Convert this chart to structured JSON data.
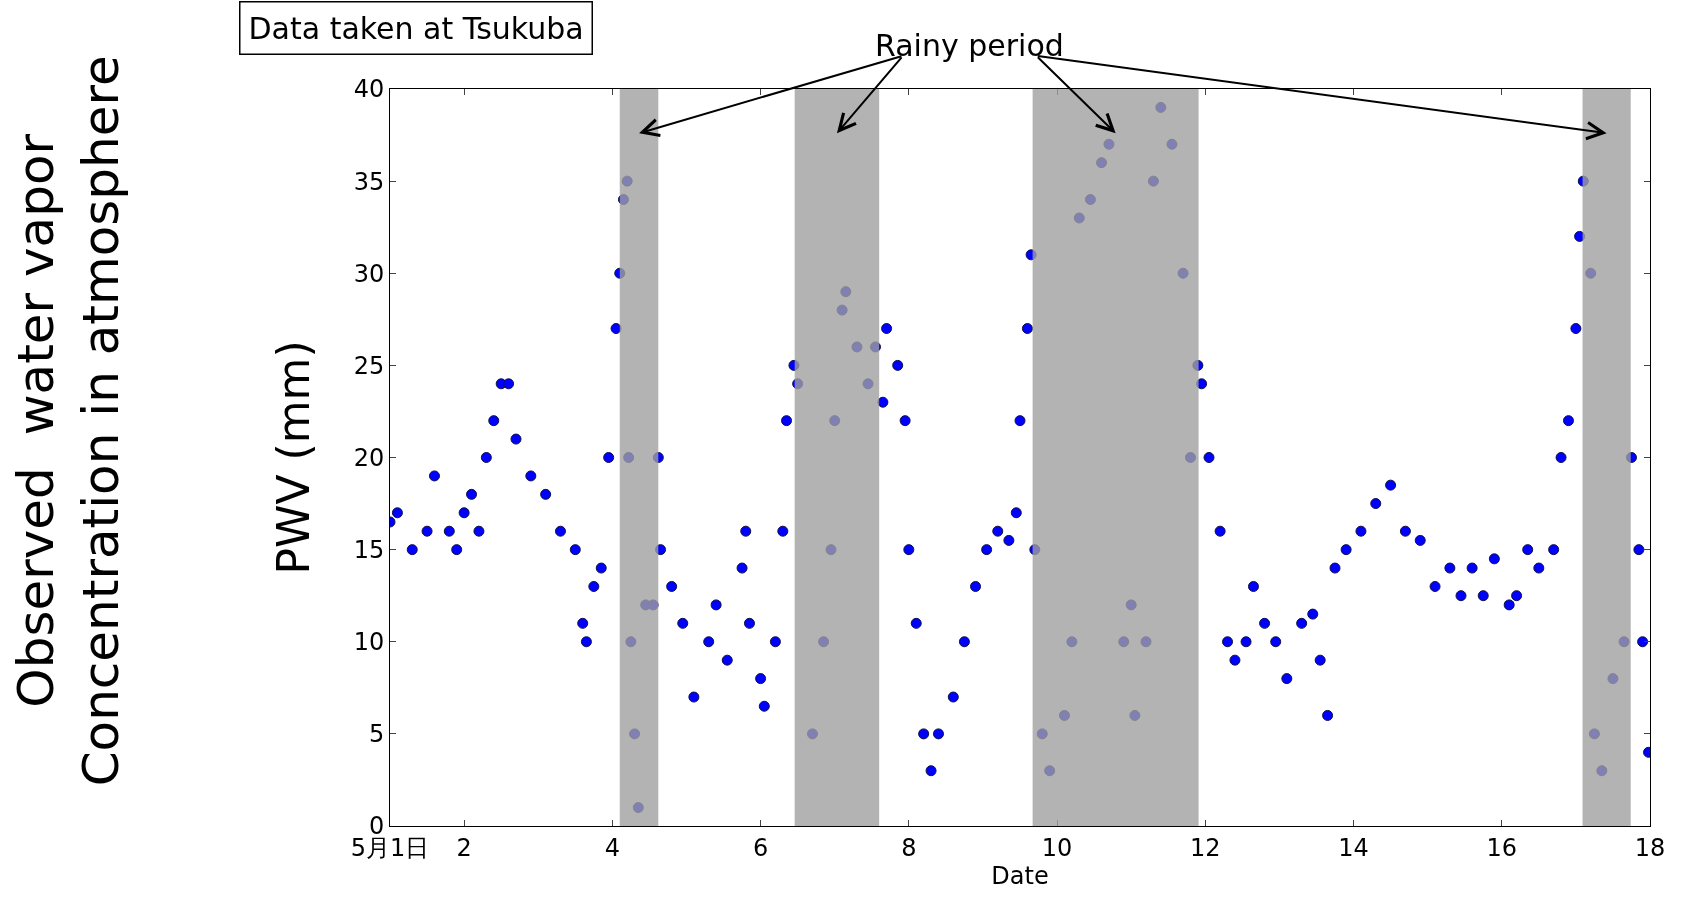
{
  "chart_data": {
    "type": "scatter",
    "title": "Data taken at Tsukuba",
    "xlabel": "Date",
    "ylabel": "PWV (mm)",
    "annotations": [
      "Observed  water vapor\nConcentration in atmosphere",
      "Rainy period"
    ],
    "x": [
      1.0,
      1.1,
      1.3,
      1.5,
      1.6,
      1.8,
      1.9,
      2.0,
      2.1,
      2.2,
      2.3,
      2.4,
      2.5,
      2.6,
      2.7,
      2.9,
      3.1,
      3.3,
      3.5,
      3.6,
      3.65,
      3.75,
      3.85,
      3.95,
      4.05,
      4.1,
      4.15,
      4.2,
      4.22,
      4.25,
      4.3,
      4.35,
      4.45,
      4.55,
      4.62,
      4.65,
      4.8,
      4.95,
      5.1,
      5.3,
      5.4,
      5.55,
      5.75,
      5.8,
      5.85,
      6.0,
      6.05,
      6.2,
      6.3,
      6.35,
      6.45,
      6.5,
      6.7,
      6.85,
      6.95,
      7.0,
      7.1,
      7.15,
      7.3,
      7.45,
      7.55,
      7.65,
      7.7,
      7.85,
      7.95,
      8.0,
      8.1,
      8.2,
      8.3,
      8.4,
      8.6,
      8.75,
      8.9,
      9.05,
      9.2,
      9.35,
      9.45,
      9.5,
      9.6,
      9.65,
      9.7,
      9.8,
      9.9,
      10.1,
      10.2,
      10.3,
      10.45,
      10.6,
      10.7,
      10.9,
      11.0,
      11.05,
      11.2,
      11.3,
      11.4,
      11.55,
      11.7,
      11.8,
      11.9,
      11.95,
      12.05,
      12.2,
      12.3,
      12.4,
      12.55,
      12.65,
      12.8,
      12.95,
      13.1,
      13.3,
      13.45,
      13.55,
      13.65,
      13.75,
      13.9,
      14.1,
      14.3,
      14.5,
      14.7,
      14.9,
      15.1,
      15.3,
      15.45,
      15.6,
      15.75,
      15.9,
      16.1,
      16.2,
      16.35,
      16.5,
      16.7,
      16.8,
      16.9,
      17.0,
      17.05,
      17.1,
      17.2,
      17.25,
      17.35,
      17.5,
      17.65,
      17.75,
      17.85,
      17.9,
      17.98
    ],
    "series": [
      {
        "color": "#0000ff",
        "values": [
          16.5,
          17,
          15,
          16,
          19,
          16,
          15,
          17,
          18,
          16,
          20,
          22,
          24,
          24,
          21,
          19,
          18,
          16,
          15,
          11,
          10,
          13,
          14,
          20,
          27,
          30,
          34,
          35,
          20,
          10,
          5,
          1,
          12,
          12,
          20,
          15,
          13,
          11,
          7,
          10,
          12,
          9,
          14,
          16,
          11,
          8,
          6.5,
          10,
          16,
          22,
          25,
          24,
          5,
          10,
          15,
          22,
          28,
          29,
          26,
          24,
          26,
          23,
          27,
          25,
          22,
          15,
          11,
          5,
          3,
          5,
          7,
          10,
          13,
          15,
          16,
          15.5,
          17,
          22,
          27,
          31,
          15,
          5,
          3,
          6,
          10,
          33,
          34,
          36,
          37,
          10,
          12,
          6,
          10,
          35,
          39,
          37,
          30,
          20,
          25,
          24,
          20,
          16,
          10,
          9,
          10,
          13,
          11,
          10,
          8,
          11,
          11.5,
          9,
          6,
          14,
          15,
          16,
          17.5,
          18.5,
          16,
          15.5,
          13,
          14,
          12.5,
          14,
          12.5,
          14.5,
          12,
          12.5,
          15,
          14,
          15,
          20,
          22,
          27,
          32,
          35,
          30,
          5,
          3,
          8,
          10,
          20,
          15,
          10,
          4
        ]
      }
    ],
    "marker": "circle",
    "bands": [
      {
        "axis": "x",
        "from": 4.1,
        "to": 4.62,
        "color": "#a0a0a0"
      },
      {
        "axis": "x",
        "from": 6.46,
        "to": 7.6,
        "color": "#a0a0a0"
      },
      {
        "axis": "x",
        "from": 9.67,
        "to": 11.91,
        "color": "#a0a0a0"
      },
      {
        "axis": "x",
        "from": 17.09,
        "to": 17.74,
        "color": "#a0a0a0"
      }
    ],
    "xlim": [
      1,
      18
    ],
    "xticks": [
      {
        "value": 1,
        "label": "5月1日"
      },
      2,
      4,
      6,
      8,
      10,
      12,
      14,
      16,
      18
    ],
    "ylim": [
      0,
      40
    ],
    "yticks": [
      0,
      5,
      10,
      15,
      20,
      25,
      30,
      35,
      40
    ],
    "legend": false
  }
}
